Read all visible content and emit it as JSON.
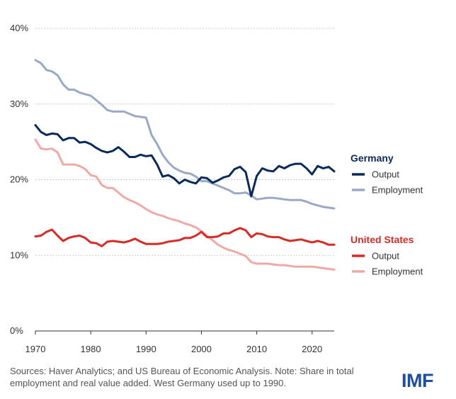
{
  "chart_data": {
    "type": "line",
    "title": "",
    "xlabel": "",
    "ylabel": "",
    "xlim": [
      1970,
      2024
    ],
    "ylim": [
      0,
      40
    ],
    "xticks": [
      1970,
      1980,
      1990,
      2000,
      2010,
      2020
    ],
    "yticks": [
      0,
      10,
      20,
      30,
      40
    ],
    "ytick_labels": [
      "0%",
      "10%",
      "20%",
      "30%",
      "40%"
    ],
    "grid": "horizontal dashed",
    "legend": [
      {
        "group": "Germany",
        "group_color": "#0a2a5c",
        "entries": [
          {
            "label": "Output",
            "color": "#0a2a5c"
          },
          {
            "label": "Employment",
            "color": "#9aa9c6"
          }
        ]
      },
      {
        "group": "United States",
        "group_color": "#d72b27",
        "entries": [
          {
            "label": "Output",
            "color": "#d72b27"
          },
          {
            "label": "Employment",
            "color": "#f0aaa6"
          }
        ]
      }
    ],
    "series": [
      {
        "group": "Germany",
        "name": "Output",
        "color": "#0a2a5c",
        "points": [
          [
            1970,
            27.2
          ],
          [
            1971,
            26.3
          ],
          [
            1972,
            25.9
          ],
          [
            1973,
            26.1
          ],
          [
            1974,
            26.0
          ],
          [
            1975,
            25.2
          ],
          [
            1976,
            25.5
          ],
          [
            1977,
            25.5
          ],
          [
            1978,
            24.9
          ],
          [
            1979,
            25.0
          ],
          [
            1980,
            24.7
          ],
          [
            1981,
            24.2
          ],
          [
            1982,
            23.8
          ],
          [
            1983,
            23.6
          ],
          [
            1984,
            23.8
          ],
          [
            1985,
            24.3
          ],
          [
            1986,
            23.7
          ],
          [
            1987,
            23.0
          ],
          [
            1988,
            23.0
          ],
          [
            1989,
            23.3
          ],
          [
            1990,
            23.1
          ],
          [
            1991,
            23.2
          ],
          [
            1992,
            22.0
          ],
          [
            1993,
            20.4
          ],
          [
            1994,
            20.6
          ],
          [
            1995,
            20.2
          ],
          [
            1996,
            19.5
          ],
          [
            1997,
            20.0
          ],
          [
            1998,
            19.7
          ],
          [
            1999,
            19.5
          ],
          [
            2000,
            20.3
          ],
          [
            2001,
            20.2
          ],
          [
            2002,
            19.6
          ],
          [
            2003,
            19.9
          ],
          [
            2004,
            20.3
          ],
          [
            2005,
            20.5
          ],
          [
            2006,
            21.4
          ],
          [
            2007,
            21.7
          ],
          [
            2008,
            21.0
          ],
          [
            2009,
            17.8
          ],
          [
            2010,
            20.5
          ],
          [
            2011,
            21.5
          ],
          [
            2012,
            21.2
          ],
          [
            2013,
            21.1
          ],
          [
            2014,
            21.8
          ],
          [
            2015,
            21.5
          ],
          [
            2016,
            21.9
          ],
          [
            2017,
            22.1
          ],
          [
            2018,
            22.1
          ],
          [
            2019,
            21.5
          ],
          [
            2020,
            20.7
          ],
          [
            2021,
            21.8
          ],
          [
            2022,
            21.5
          ],
          [
            2023,
            21.7
          ],
          [
            2024,
            21.1
          ]
        ]
      },
      {
        "group": "Germany",
        "name": "Employment",
        "color": "#9aa9c6",
        "points": [
          [
            1970,
            35.8
          ],
          [
            1971,
            35.4
          ],
          [
            1972,
            34.5
          ],
          [
            1973,
            34.3
          ],
          [
            1974,
            33.8
          ],
          [
            1975,
            32.6
          ],
          [
            1976,
            31.9
          ],
          [
            1977,
            31.9
          ],
          [
            1978,
            31.5
          ],
          [
            1979,
            31.3
          ],
          [
            1980,
            31.1
          ],
          [
            1981,
            30.5
          ],
          [
            1982,
            29.9
          ],
          [
            1983,
            29.2
          ],
          [
            1984,
            29.0
          ],
          [
            1985,
            29.0
          ],
          [
            1986,
            29.0
          ],
          [
            1987,
            28.7
          ],
          [
            1988,
            28.4
          ],
          [
            1989,
            28.3
          ],
          [
            1990,
            28.2
          ],
          [
            1991,
            25.9
          ],
          [
            1992,
            24.7
          ],
          [
            1993,
            23.3
          ],
          [
            1994,
            22.3
          ],
          [
            1995,
            21.6
          ],
          [
            1996,
            21.2
          ],
          [
            1997,
            20.9
          ],
          [
            1998,
            20.8
          ],
          [
            1999,
            20.4
          ],
          [
            2000,
            19.8
          ],
          [
            2001,
            19.8
          ],
          [
            2002,
            19.5
          ],
          [
            2003,
            19.2
          ],
          [
            2004,
            18.9
          ],
          [
            2005,
            18.6
          ],
          [
            2006,
            18.2
          ],
          [
            2007,
            18.2
          ],
          [
            2008,
            18.3
          ],
          [
            2009,
            17.9
          ],
          [
            2010,
            17.4
          ],
          [
            2011,
            17.5
          ],
          [
            2012,
            17.6
          ],
          [
            2013,
            17.6
          ],
          [
            2014,
            17.5
          ],
          [
            2015,
            17.4
          ],
          [
            2016,
            17.3
          ],
          [
            2017,
            17.3
          ],
          [
            2018,
            17.3
          ],
          [
            2019,
            17.1
          ],
          [
            2020,
            16.8
          ],
          [
            2021,
            16.6
          ],
          [
            2022,
            16.4
          ],
          [
            2023,
            16.3
          ],
          [
            2024,
            16.2
          ]
        ]
      },
      {
        "group": "United States",
        "name": "Output",
        "color": "#d72b27",
        "points": [
          [
            1970,
            12.5
          ],
          [
            1971,
            12.6
          ],
          [
            1972,
            13.1
          ],
          [
            1973,
            13.4
          ],
          [
            1974,
            12.6
          ],
          [
            1975,
            11.9
          ],
          [
            1976,
            12.3
          ],
          [
            1977,
            12.5
          ],
          [
            1978,
            12.6
          ],
          [
            1979,
            12.3
          ],
          [
            1980,
            11.7
          ],
          [
            1981,
            11.6
          ],
          [
            1982,
            11.2
          ],
          [
            1983,
            11.8
          ],
          [
            1984,
            11.9
          ],
          [
            1985,
            11.8
          ],
          [
            1986,
            11.7
          ],
          [
            1987,
            11.9
          ],
          [
            1988,
            12.2
          ],
          [
            1989,
            11.8
          ],
          [
            1990,
            11.5
          ],
          [
            1991,
            11.5
          ],
          [
            1992,
            11.5
          ],
          [
            1993,
            11.6
          ],
          [
            1994,
            11.8
          ],
          [
            1995,
            11.9
          ],
          [
            1996,
            12.0
          ],
          [
            1997,
            12.3
          ],
          [
            1998,
            12.3
          ],
          [
            1999,
            12.6
          ],
          [
            2000,
            13.1
          ],
          [
            2001,
            12.4
          ],
          [
            2002,
            12.4
          ],
          [
            2003,
            12.5
          ],
          [
            2004,
            12.9
          ],
          [
            2005,
            12.9
          ],
          [
            2006,
            13.3
          ],
          [
            2007,
            13.6
          ],
          [
            2008,
            13.3
          ],
          [
            2009,
            12.4
          ],
          [
            2010,
            12.9
          ],
          [
            2011,
            12.8
          ],
          [
            2012,
            12.5
          ],
          [
            2013,
            12.4
          ],
          [
            2014,
            12.4
          ],
          [
            2015,
            12.1
          ],
          [
            2016,
            11.9
          ],
          [
            2017,
            12.0
          ],
          [
            2018,
            12.1
          ],
          [
            2019,
            11.9
          ],
          [
            2020,
            11.7
          ],
          [
            2021,
            11.9
          ],
          [
            2022,
            11.7
          ],
          [
            2023,
            11.4
          ],
          [
            2024,
            11.4
          ]
        ]
      },
      {
        "group": "United States",
        "name": "Employment",
        "color": "#f0aaa6",
        "points": [
          [
            1970,
            25.3
          ],
          [
            1971,
            24.1
          ],
          [
            1972,
            24.0
          ],
          [
            1973,
            24.1
          ],
          [
            1974,
            23.6
          ],
          [
            1975,
            22.0
          ],
          [
            1976,
            22.0
          ],
          [
            1977,
            22.0
          ],
          [
            1978,
            21.8
          ],
          [
            1979,
            21.4
          ],
          [
            1980,
            20.6
          ],
          [
            1981,
            20.4
          ],
          [
            1982,
            19.3
          ],
          [
            1983,
            18.9
          ],
          [
            1984,
            18.9
          ],
          [
            1985,
            18.3
          ],
          [
            1986,
            17.7
          ],
          [
            1987,
            17.3
          ],
          [
            1988,
            17.0
          ],
          [
            1989,
            16.6
          ],
          [
            1990,
            16.1
          ],
          [
            1991,
            15.7
          ],
          [
            1992,
            15.4
          ],
          [
            1993,
            15.2
          ],
          [
            1994,
            14.9
          ],
          [
            1995,
            14.7
          ],
          [
            1996,
            14.5
          ],
          [
            1997,
            14.2
          ],
          [
            1998,
            14.0
          ],
          [
            1999,
            13.7
          ],
          [
            2000,
            13.2
          ],
          [
            2001,
            12.6
          ],
          [
            2002,
            12.0
          ],
          [
            2003,
            11.4
          ],
          [
            2004,
            11.0
          ],
          [
            2005,
            10.7
          ],
          [
            2006,
            10.5
          ],
          [
            2007,
            10.2
          ],
          [
            2008,
            9.9
          ],
          [
            2009,
            9.1
          ],
          [
            2010,
            8.9
          ],
          [
            2011,
            8.9
          ],
          [
            2012,
            8.9
          ],
          [
            2013,
            8.8
          ],
          [
            2014,
            8.7
          ],
          [
            2015,
            8.7
          ],
          [
            2016,
            8.6
          ],
          [
            2017,
            8.5
          ],
          [
            2018,
            8.5
          ],
          [
            2019,
            8.5
          ],
          [
            2020,
            8.5
          ],
          [
            2021,
            8.4
          ],
          [
            2022,
            8.3
          ],
          [
            2023,
            8.2
          ],
          [
            2024,
            8.1
          ]
        ]
      }
    ]
  },
  "footer": {
    "sources": "Sources: Haver Analytics; and US Bureau of Economic Analysis. Note: Share in total employment and real value added. West Germany used up to 1990."
  },
  "logo": {
    "text": "IMF"
  }
}
